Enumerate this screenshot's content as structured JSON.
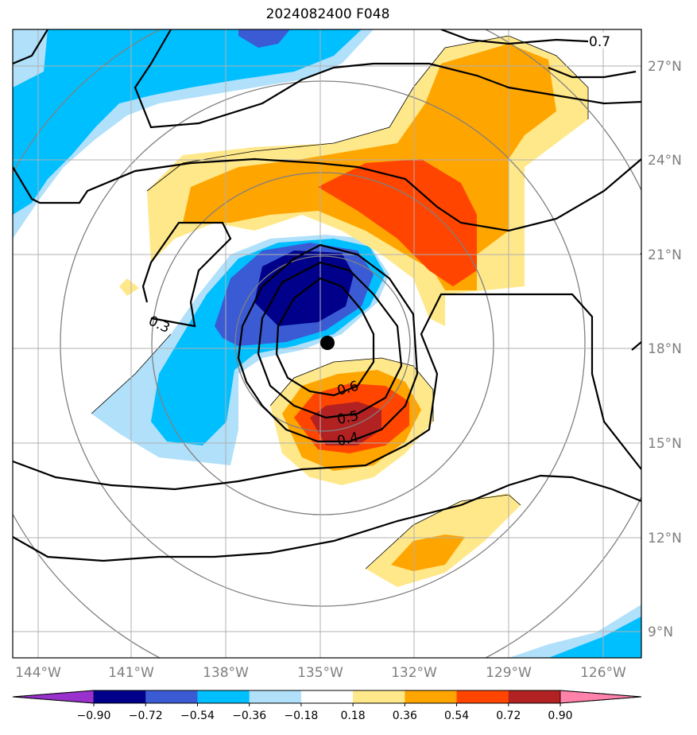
{
  "title": "2024082400 F048",
  "lon_ticks": [
    "144°W",
    "141°W",
    "138°W",
    "135°W",
    "132°W",
    "129°W",
    "126°W"
  ],
  "lat_ticks": [
    "27°N",
    "24°N",
    "21°N",
    "18°N",
    "15°N",
    "12°N",
    "9°N"
  ],
  "contour_labels": [
    "0.7",
    "0.3",
    "0.6",
    "0.5",
    "0.4"
  ],
  "colorbar": {
    "ticks": [
      "−0.90",
      "−0.72",
      "−0.54",
      "−0.36",
      "−0.18",
      "0.18",
      "0.36",
      "0.54",
      "0.72",
      "0.90"
    ],
    "colors": [
      "#9932cc",
      "#00008b",
      "#3b5bd4",
      "#00bfff",
      "#b0e0fa",
      "#ffffff",
      "#ffe88a",
      "#ffa500",
      "#ff4500",
      "#b22222",
      "#ff82ab"
    ]
  },
  "center_marker": "storm-center"
}
